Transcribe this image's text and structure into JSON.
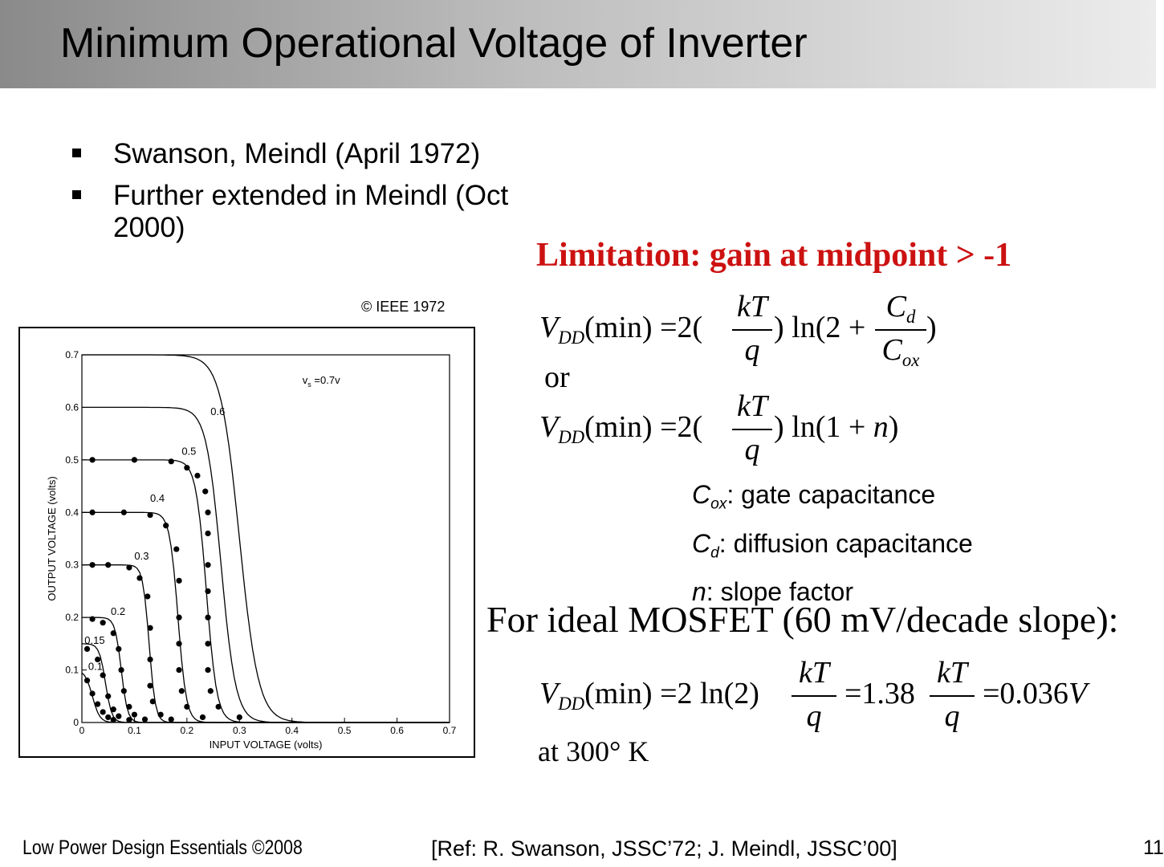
{
  "slide": {
    "title": "Minimum Operational Voltage of Inverter",
    "bullets": [
      "Swanson, Meindl (April 1972)",
      "Further extended in Meindl (Oct 2000)"
    ],
    "copyright": "© IEEE 1972",
    "limitation": "Limitation: gain at midpoint > -1",
    "or": "or",
    "definitions": [
      {
        "sym": "C",
        "sub": "ox",
        "text": ": gate capacitance"
      },
      {
        "sym": "C",
        "sub": "d",
        "text": ": diffusion capacitance"
      },
      {
        "sym": "n",
        "sub": "",
        "text": ": slope factor"
      }
    ],
    "ideal": "For ideal MOSFET (60 mV/decade slope):",
    "at300": "at 300° K",
    "footer_left": "Low Power Design Essentials ©2008",
    "footer_ref": "[Ref: R. Swanson, JSSC’72; J. Meindl, JSSC’00]",
    "page_number": "11"
  },
  "equations": {
    "eq1": {
      "lhs_sym": "V",
      "lhs_sub": "DD",
      "lhs_rest": "(min) =2(",
      "frac1_num": "kT",
      "frac1_den": "q",
      "mid": ") ln(2 + ",
      "frac2_num_sym": "C",
      "frac2_num_sub": "d",
      "frac2_den_sym": "C",
      "frac2_den_sub": "ox",
      "end": ")"
    },
    "eq2": {
      "lhs_sym": "V",
      "lhs_sub": "DD",
      "lhs_rest": "(min) =2(",
      "frac1_num": "kT",
      "frac1_den": "q",
      "mid": ") ln(1 + ",
      "n": "n",
      "end": ")"
    },
    "eq3": {
      "lhs_sym": "V",
      "lhs_sub": "DD",
      "lhs_rest": "(min) =2 ln(2)",
      "frac1_num": "kT",
      "frac1_den": "q",
      "mid": "=1.38",
      "frac2_num": "kT",
      "frac2_den": "q",
      "end": "=0.036",
      "unit": "V"
    }
  },
  "chart_data": {
    "type": "line",
    "xlabel": "INPUT VOLTAGE (volts)",
    "ylabel": "OUTPUT VOLTAGE (volts)",
    "xlim": [
      0,
      0.7
    ],
    "ylim": [
      0,
      0.7
    ],
    "xticks": [
      "0",
      "0.1",
      "0.2",
      "0.3",
      "0.4",
      "0.5",
      "0.6",
      "0.7"
    ],
    "yticks": [
      "0",
      "0.1",
      "0.2",
      "0.3",
      "0.4",
      "0.5",
      "0.6",
      "0.7"
    ],
    "annotation": "v_s = 0.7v",
    "annotation_sym": "v",
    "annotation_sub": "s",
    "annotation_rest": " =0.7v",
    "series": [
      {
        "name": "0.7",
        "vdd": 0.7,
        "vm": 0.3,
        "k": 0.018,
        "label_x": 0,
        "label_y": 0,
        "points": []
      },
      {
        "name": "0.6",
        "vdd": 0.6,
        "vm": 0.265,
        "k": 0.014,
        "label_x": 0.245,
        "label_y": 0.585,
        "points": []
      },
      {
        "name": "0.5",
        "vdd": 0.5,
        "vm": 0.237,
        "k": 0.01,
        "label_x": 0.19,
        "label_y": 0.51,
        "points": [
          [
            0.02,
            0.5
          ],
          [
            0.1,
            0.5
          ],
          [
            0.17,
            0.497
          ],
          [
            0.2,
            0.485
          ],
          [
            0.22,
            0.47
          ],
          [
            0.235,
            0.44
          ],
          [
            0.24,
            0.4
          ],
          [
            0.24,
            0.36
          ],
          [
            0.24,
            0.3
          ],
          [
            0.24,
            0.25
          ],
          [
            0.24,
            0.2
          ],
          [
            0.24,
            0.15
          ],
          [
            0.24,
            0.1
          ],
          [
            0.245,
            0.06
          ],
          [
            0.26,
            0.03
          ],
          [
            0.3,
            0.01
          ]
        ]
      },
      {
        "name": "0.4",
        "vdd": 0.4,
        "vm": 0.183,
        "k": 0.008,
        "label_x": 0.13,
        "label_y": 0.42,
        "points": [
          [
            0.02,
            0.4
          ],
          [
            0.08,
            0.4
          ],
          [
            0.13,
            0.395
          ],
          [
            0.16,
            0.375
          ],
          [
            0.18,
            0.33
          ],
          [
            0.185,
            0.27
          ],
          [
            0.185,
            0.2
          ],
          [
            0.185,
            0.15
          ],
          [
            0.185,
            0.1
          ],
          [
            0.19,
            0.06
          ],
          [
            0.2,
            0.03
          ],
          [
            0.23,
            0.01
          ]
        ]
      },
      {
        "name": "0.3",
        "vdd": 0.3,
        "vm": 0.128,
        "k": 0.006,
        "label_x": 0.1,
        "label_y": 0.31,
        "points": [
          [
            0.02,
            0.3
          ],
          [
            0.05,
            0.3
          ],
          [
            0.09,
            0.295
          ],
          [
            0.11,
            0.275
          ],
          [
            0.125,
            0.24
          ],
          [
            0.13,
            0.18
          ],
          [
            0.13,
            0.12
          ],
          [
            0.13,
            0.07
          ],
          [
            0.135,
            0.04
          ],
          [
            0.15,
            0.015
          ],
          [
            0.17,
            0.006
          ]
        ]
      },
      {
        "name": "0.2",
        "vdd": 0.2,
        "vm": 0.075,
        "k": 0.006,
        "label_x": 0.055,
        "label_y": 0.205,
        "points": [
          [
            0.02,
            0.197
          ],
          [
            0.04,
            0.19
          ],
          [
            0.06,
            0.17
          ],
          [
            0.07,
            0.14
          ],
          [
            0.075,
            0.1
          ],
          [
            0.08,
            0.06
          ],
          [
            0.09,
            0.03
          ],
          [
            0.1,
            0.015
          ],
          [
            0.12,
            0.006
          ]
        ]
      },
      {
        "name": "0.15",
        "vdd": 0.15,
        "vm": 0.045,
        "k": 0.006,
        "label_x": 0.005,
        "label_y": 0.15,
        "points": [
          [
            0.01,
            0.14
          ],
          [
            0.03,
            0.12
          ],
          [
            0.04,
            0.09
          ],
          [
            0.05,
            0.05
          ],
          [
            0.06,
            0.025
          ],
          [
            0.07,
            0.012
          ],
          [
            0.09,
            0.005
          ]
        ]
      },
      {
        "name": "0.1",
        "vdd": 0.1,
        "vm": 0.02,
        "k": 0.007,
        "label_x": 0.012,
        "label_y": 0.1,
        "points": [
          [
            0.01,
            0.08
          ],
          [
            0.02,
            0.055
          ],
          [
            0.03,
            0.035
          ],
          [
            0.04,
            0.02
          ],
          [
            0.05,
            0.01
          ],
          [
            0.06,
            0.005
          ]
        ]
      }
    ]
  }
}
